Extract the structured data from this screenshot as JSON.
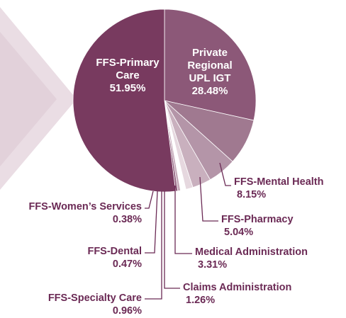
{
  "chart_data": {
    "type": "pie",
    "categories": [
      "Private Regional UPL IGT",
      "FFS-Mental Health",
      "FFS-Pharmacy",
      "Medical Administration",
      "Claims Administration",
      "FFS-Specialty Care",
      "FFS-Dental",
      "FFS-Women’s Services",
      "FFS-Primary Care"
    ],
    "values": [
      28.48,
      8.15,
      5.04,
      3.31,
      1.26,
      0.96,
      0.47,
      0.38,
      51.95
    ],
    "value_labels": [
      "28.48%",
      "8.15%",
      "5.04%",
      "3.31%",
      "1.26%",
      "0.96%",
      "0.47%",
      "0.38%",
      "51.95%"
    ],
    "colors": [
      "#8c5878",
      "#a07990",
      "#b495a8",
      "#c9b0be",
      "#e6d8df",
      "#ffffff",
      "#c3a6b6",
      "#8c5878",
      "#783a5f"
    ]
  }
}
